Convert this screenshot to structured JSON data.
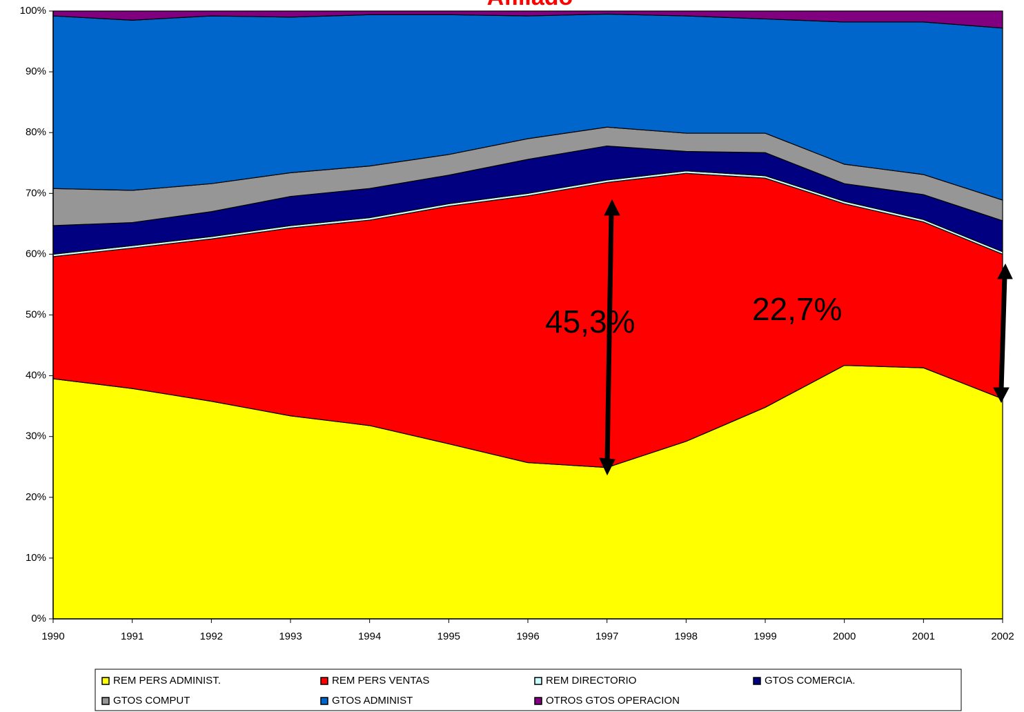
{
  "chart_data": {
    "type": "stacked_area",
    "title": "Afiliado",
    "categories": [
      "1990",
      "1991",
      "1992",
      "1993",
      "1994",
      "1995",
      "1996",
      "1997",
      "1998",
      "1999",
      "2000",
      "2001",
      "2002"
    ],
    "series": [
      {
        "name": "REM PERS ADMINIST.",
        "color": "#FFFF00",
        "values": [
          39.5,
          37.9,
          35.8,
          33.4,
          31.8,
          28.8,
          25.7,
          24.9,
          29.2,
          34.8,
          41.7,
          41.3,
          36.2
        ]
      },
      {
        "name": "REM PERS VENTAS",
        "color": "#FF0000",
        "values": [
          20.1,
          23.1,
          26.7,
          30.9,
          33.8,
          39.1,
          43.9,
          46.9,
          44.1,
          37.7,
          26.6,
          24.0,
          23.8
        ]
      },
      {
        "name": "REM DIRECTORIO",
        "color": "#CCFFFF",
        "values": [
          0.4,
          0.4,
          0.4,
          0.4,
          0.4,
          0.4,
          0.4,
          0.4,
          0.4,
          0.4,
          0.4,
          0.4,
          0.4
        ]
      },
      {
        "name": "GTOS COMERCIA.",
        "color": "#000080",
        "values": [
          4.7,
          3.8,
          4.1,
          4.8,
          4.8,
          4.7,
          5.6,
          5.6,
          3.2,
          3.8,
          2.9,
          4.1,
          5.1
        ]
      },
      {
        "name": "GTOS COMPUT",
        "color": "#969696",
        "values": [
          6.1,
          5.3,
          4.6,
          3.9,
          3.7,
          3.4,
          3.4,
          3.1,
          3.0,
          3.2,
          3.2,
          3.3,
          3.4
        ]
      },
      {
        "name": "GTOS ADMINIST",
        "color": "#0066CC",
        "values": [
          28.4,
          28.0,
          27.6,
          25.6,
          24.9,
          23.0,
          20.2,
          18.6,
          19.3,
          18.8,
          23.4,
          25.1,
          28.3
        ]
      },
      {
        "name": "OTROS GTOS OPERACION",
        "color": "#800080",
        "values": [
          0.8,
          1.5,
          0.8,
          1.0,
          0.6,
          0.6,
          0.8,
          0.5,
          0.8,
          1.3,
          1.8,
          1.8,
          2.8
        ]
      }
    ],
    "ylim": [
      0,
      100
    ],
    "yticks": [
      {
        "value": 0,
        "label": "0%"
      },
      {
        "value": 10,
        "label": "10%"
      },
      {
        "value": 20,
        "label": "20%"
      },
      {
        "value": 30,
        "label": "30%"
      },
      {
        "value": 40,
        "label": "40%"
      },
      {
        "value": 50,
        "label": "50%"
      },
      {
        "value": 60,
        "label": "60%"
      },
      {
        "value": 70,
        "label": "70%"
      },
      {
        "value": 80,
        "label": "80%"
      },
      {
        "value": 90,
        "label": "90%"
      },
      {
        "value": 100,
        "label": "100%"
      }
    ],
    "annotations": [
      "45,3%",
      "22,7%"
    ]
  }
}
